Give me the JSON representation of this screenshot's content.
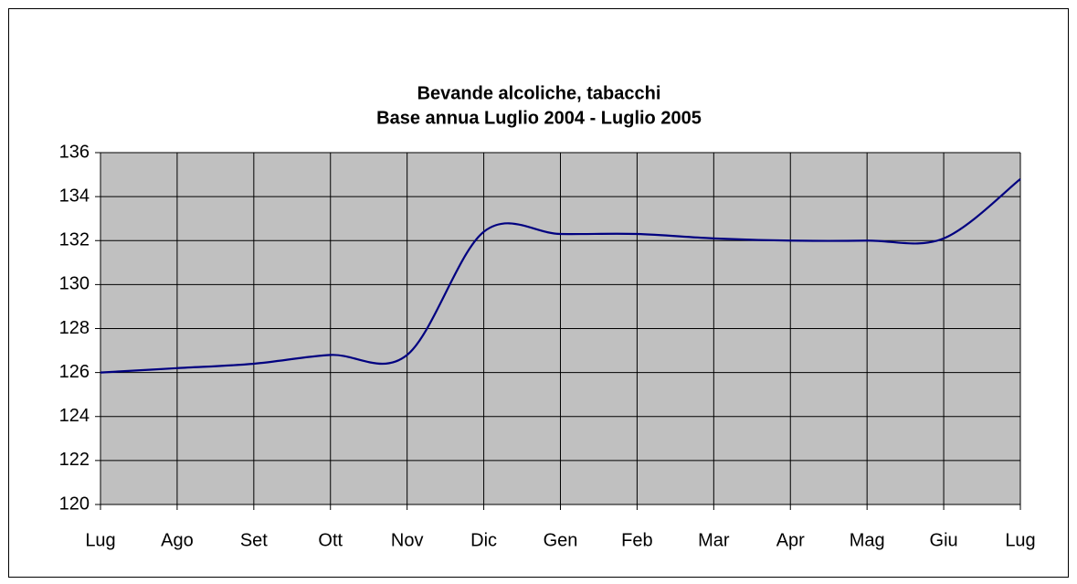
{
  "chart_data": {
    "type": "line",
    "title": "Bevande alcoliche, tabacchi",
    "subtitle": "Base annua Luglio 2004 - Luglio 2005",
    "categories": [
      "Lug",
      "Ago",
      "Set",
      "Ott",
      "Nov",
      "Dic",
      "Gen",
      "Feb",
      "Mar",
      "Apr",
      "Mag",
      "Giu",
      "Lug"
    ],
    "series": [
      {
        "name": "Bevande alcoliche, tabacchi",
        "color": "#000080",
        "values": [
          126.0,
          126.2,
          126.4,
          126.8,
          126.8,
          132.4,
          132.3,
          132.3,
          132.1,
          132.0,
          132.0,
          132.1,
          134.8
        ]
      }
    ],
    "ylim": [
      120,
      136
    ],
    "yticks": [
      120,
      122,
      124,
      126,
      128,
      130,
      132,
      134,
      136
    ],
    "grid": true,
    "smooth": true,
    "plot_background": "#c0c0c0"
  }
}
